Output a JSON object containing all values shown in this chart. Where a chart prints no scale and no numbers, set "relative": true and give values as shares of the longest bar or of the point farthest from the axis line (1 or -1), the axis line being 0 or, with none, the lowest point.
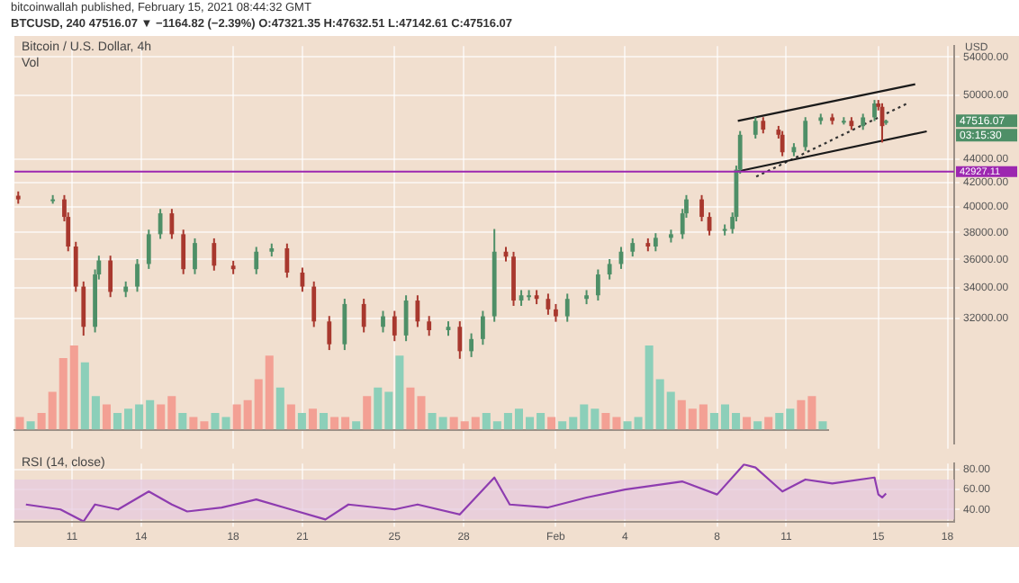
{
  "chart_data": [
    {
      "type": "candlestick",
      "title": "Bitcoin / U.S. Dollar, 4h",
      "ylabel": "USD",
      "log": true,
      "grid": true,
      "tick_labels": "y",
      "annotations": [
        "bitcoinwallah published, February 15, 2021 08:44:32 GMT",
        "BTCUSD, 240 47516.07 ▼ −1164.82 (−2.39%) O:47321.35 H:47632.51 L:47142.61 C:47516.07",
        "47516.07",
        "03:15:30"
      ],
      "xlim": [
        "2021-01-08T12:00",
        "2021-02-18T07:00"
      ],
      "xticks": [
        {
          "value": "2021-01-11",
          "label": null
        },
        {
          "value": "2021-01-14",
          "label": null
        },
        {
          "value": "2021-01-18",
          "label": null
        },
        {
          "value": "2021-01-21",
          "label": null
        },
        {
          "value": "2021-01-25",
          "label": null
        },
        {
          "value": "2021-01-28",
          "label": null
        },
        {
          "value": "2021-02-01",
          "label": null
        },
        {
          "value": "2021-02-04",
          "label": null
        },
        {
          "value": "2021-02-08",
          "label": null
        },
        {
          "value": "2021-02-11",
          "label": null
        },
        {
          "value": "2021-02-15",
          "label": null
        },
        {
          "value": "2021-02-18",
          "label": null
        }
      ],
      "ylim": [
        24900,
        55200
      ],
      "yticks": [
        {
          "value": 54000,
          "label": "54000.00"
        },
        {
          "value": 50000,
          "label": "50000.00"
        },
        {
          "value": 44000,
          "label": "44000.00"
        },
        {
          "value": 42000,
          "label": "42000.00"
        },
        {
          "value": 40000,
          "label": "40000.00"
        },
        {
          "value": 38000,
          "label": "38000.00"
        },
        {
          "value": 36000,
          "label": "36000.00"
        },
        {
          "value": 34000,
          "label": "34000.00"
        },
        {
          "value": 32000,
          "label": "32000.00"
        }
      ],
      "x": [
        "2021-01-08T16:00",
        "2021-01-10T04:00",
        "2021-01-10T16:00",
        "2021-01-10T20:00",
        "2021-01-11T04:00",
        "2021-01-11T12:00",
        "2021-01-12T00:00",
        "2021-01-12T04:00",
        "2021-01-12T16:00",
        "2021-01-13T08:00",
        "2021-01-13T20:00",
        "2021-01-14T08:00",
        "2021-01-14T20:00",
        "2021-01-15T08:00",
        "2021-01-15T20:00",
        "2021-01-16T08:00",
        "2021-01-17T04:00",
        "2021-01-18T00:00",
        "2021-01-19T00:00",
        "2021-01-19T16:00",
        "2021-01-20T08:00",
        "2021-01-21T00:00",
        "2021-01-21T12:00",
        "2021-01-22T04:00",
        "2021-01-22T20:00",
        "2021-01-23T16:00",
        "2021-01-24T12:00",
        "2021-01-25T00:00",
        "2021-01-25T12:00",
        "2021-01-26T00:00",
        "2021-01-26T12:00",
        "2021-01-27T08:00",
        "2021-01-27T20:00",
        "2021-01-28T08:00",
        "2021-01-28T20:00",
        "2021-01-29T08:00",
        "2021-01-29T20:00",
        "2021-01-30T04:00",
        "2021-01-30T12:00",
        "2021-01-30T20:00",
        "2021-01-31T04:00",
        "2021-01-31T16:00",
        "2021-02-01T00:00",
        "2021-02-01T12:00",
        "2021-02-02T08:00",
        "2021-02-02T20:00",
        "2021-02-03T08:00",
        "2021-02-03T20:00",
        "2021-02-04T08:00",
        "2021-02-05T00:00",
        "2021-02-05T08:00",
        "2021-02-06T00:00",
        "2021-02-06T12:00",
        "2021-02-06T16:00",
        "2021-02-07T08:00",
        "2021-02-07T16:00",
        "2021-02-08T08:00",
        "2021-02-08T16:00",
        "2021-02-08T20:00",
        "2021-02-09T00:00",
        "2021-02-09T16:00",
        "2021-02-10T00:00",
        "2021-02-10T16:00",
        "2021-02-10T20:00",
        "2021-02-11T08:00",
        "2021-02-11T20:00",
        "2021-02-12T12:00",
        "2021-02-13T00:00",
        "2021-02-13T12:00",
        "2021-02-13T20:00",
        "2021-02-14T08:00",
        "2021-02-14T20:00",
        "2021-02-15T00:00",
        "2021-02-15T04:00",
        "2021-02-15T08:00"
      ],
      "ohlc": [
        [
          40900,
          41250,
          40250,
          40600
        ],
        [
          40600,
          40950,
          40250,
          40600
        ],
        [
          40600,
          40950,
          38850,
          39200
        ],
        [
          39200,
          39550,
          36590,
          36940
        ],
        [
          36940,
          37290,
          33740,
          34090
        ],
        [
          34090,
          34440,
          30900,
          31450
        ],
        [
          31450,
          35280,
          31100,
          34930
        ],
        [
          34930,
          36270,
          34580,
          35920
        ],
        [
          35920,
          36270,
          33380,
          33730
        ],
        [
          33730,
          34440,
          33380,
          34090
        ],
        [
          34090,
          36020,
          33740,
          35670
        ],
        [
          35670,
          38210,
          35320,
          37860
        ],
        [
          37860,
          39830,
          37510,
          39480
        ],
        [
          39480,
          39830,
          37510,
          37860
        ],
        [
          37860,
          38210,
          34950,
          35300
        ],
        [
          35300,
          37550,
          34950,
          37200
        ],
        [
          37200,
          37550,
          35200,
          35550
        ],
        [
          35550,
          35900,
          34950,
          35300
        ],
        [
          35300,
          36910,
          34950,
          36560
        ],
        [
          36560,
          37160,
          36210,
          36810
        ],
        [
          36810,
          37160,
          34710,
          35060
        ],
        [
          35060,
          35410,
          33740,
          34090
        ],
        [
          34090,
          34440,
          31440,
          31790
        ],
        [
          31790,
          32140,
          30020,
          30370
        ],
        [
          30370,
          33270,
          30020,
          32920
        ],
        [
          32920,
          33270,
          31100,
          31450
        ],
        [
          31450,
          32470,
          31100,
          32120
        ],
        [
          32120,
          32470,
          30560,
          30910
        ],
        [
          30910,
          33500,
          30560,
          33150
        ],
        [
          33150,
          33500,
          31440,
          31790
        ],
        [
          31790,
          32140,
          30890,
          31240
        ],
        [
          31240,
          31800,
          30890,
          31450
        ],
        [
          31450,
          31800,
          29500,
          29950
        ],
        [
          29950,
          31040,
          29600,
          30690
        ],
        [
          30690,
          32470,
          30340,
          32120
        ],
        [
          32120,
          38260,
          31770,
          36560
        ],
        [
          36560,
          36910,
          35850,
          36200
        ],
        [
          36200,
          36550,
          32800,
          33150
        ],
        [
          33150,
          33850,
          32800,
          33500
        ],
        [
          33500,
          33850,
          33150,
          33500
        ],
        [
          33500,
          33850,
          32910,
          33260
        ],
        [
          33260,
          33610,
          32220,
          32570
        ],
        [
          32570,
          32920,
          31770,
          32120
        ],
        [
          32120,
          33610,
          31770,
          33260
        ],
        [
          33260,
          33850,
          32910,
          33500
        ],
        [
          33500,
          35280,
          33150,
          34930
        ],
        [
          34930,
          36020,
          34580,
          35670
        ],
        [
          35670,
          36910,
          35320,
          36560
        ],
        [
          36560,
          37550,
          36210,
          37200
        ],
        [
          37200,
          37550,
          36590,
          36940
        ],
        [
          36940,
          37940,
          36590,
          37590
        ],
        [
          37590,
          38210,
          37240,
          37860
        ],
        [
          37860,
          39830,
          37510,
          39480
        ],
        [
          39480,
          40950,
          39130,
          40600
        ],
        [
          40600,
          40950,
          38850,
          39200
        ],
        [
          39200,
          39550,
          37770,
          38120
        ],
        [
          38120,
          38610,
          37770,
          38260
        ],
        [
          38260,
          39550,
          37910,
          39200
        ],
        [
          39200,
          43440,
          38850,
          43090
        ],
        [
          43090,
          46560,
          42740,
          46210
        ],
        [
          46210,
          47870,
          45860,
          47520
        ],
        [
          47520,
          47870,
          46340,
          46690
        ],
        [
          46690,
          47040,
          45860,
          46210
        ],
        [
          46210,
          46560,
          44270,
          44620
        ],
        [
          44620,
          45440,
          44270,
          45090
        ],
        [
          45090,
          47870,
          44740,
          47520
        ],
        [
          47520,
          48200,
          47170,
          47850
        ],
        [
          47850,
          48200,
          47170,
          47520
        ],
        [
          47520,
          47870,
          47170,
          47520
        ],
        [
          47520,
          47870,
          46670,
          47020
        ],
        [
          47020,
          48200,
          46670,
          47850
        ],
        [
          47850,
          49550,
          47500,
          49200
        ],
        [
          49200,
          49550,
          48520,
          48870
        ],
        [
          48870,
          49220,
          45500,
          47020
        ],
        [
          47321.35,
          47632.51,
          47142.61,
          47516.07
        ]
      ],
      "colors": [
        "#a8382e",
        "#4e8f67",
        "#a8382e",
        "#a8382e",
        "#a8382e",
        "#a8382e",
        "#4e8f67",
        "#4e8f67",
        "#a8382e",
        "#4e8f67",
        "#4e8f67",
        "#4e8f67",
        "#4e8f67",
        "#a8382e",
        "#a8382e",
        "#4e8f67",
        "#a8382e",
        "#a8382e",
        "#4e8f67",
        "#4e8f67",
        "#a8382e",
        "#a8382e",
        "#a8382e",
        "#a8382e",
        "#4e8f67",
        "#a8382e",
        "#4e8f67",
        "#a8382e",
        "#4e8f67",
        "#a8382e",
        "#a8382e",
        "#4e8f67",
        "#a8382e",
        "#4e8f67",
        "#4e8f67",
        "#4e8f67",
        "#a8382e",
        "#a8382e",
        "#4e8f67",
        "#4e8f67",
        "#a8382e",
        "#a8382e",
        "#a8382e",
        "#4e8f67",
        "#4e8f67",
        "#4e8f67",
        "#4e8f67",
        "#4e8f67",
        "#4e8f67",
        "#a8382e",
        "#4e8f67",
        "#4e8f67",
        "#4e8f67",
        "#4e8f67",
        "#a8382e",
        "#a8382e",
        "#4e8f67",
        "#4e8f67",
        "#4e8f67",
        "#4e8f67",
        "#4e8f67",
        "#a8382e",
        "#a8382e",
        "#a8382e",
        "#4e8f67",
        "#4e8f67",
        "#4e8f67",
        "#a8382e",
        "#4e8f67",
        "#a8382e",
        "#4e8f67",
        "#4e8f67",
        "#a8382e",
        "#a8382e",
        "#4e8f67"
      ],
      "series": [
        {
          "type": "line",
          "color": "#1a1a1a",
          "line_style": "solid",
          "x": [
            "2021-02-08T21:36",
            "2021-02-16T14:24"
          ],
          "values": [
            47520,
            51140
          ]
        },
        {
          "type": "line",
          "color": "#1a1a1a",
          "line_style": "solid",
          "x": [
            "2021-02-08T21:36",
            "2021-02-17T02:24"
          ],
          "values": [
            42940,
            46530
          ]
        },
        {
          "type": "line",
          "color": "#333333",
          "line_style": "dotted",
          "x": [
            "2021-02-09T16:48",
            "2021-02-16T06:00"
          ],
          "values": [
            42490,
            49200
          ]
        }
      ],
      "ref_lines": [
        {
          "axis": "y",
          "value": 42927.11,
          "label": "42927.11",
          "color": "#9c27b0"
        }
      ]
    },
    {
      "type": "bar",
      "title": "Vol",
      "relative": true,
      "categories": [
        null,
        null,
        null,
        null,
        null,
        null,
        null,
        null,
        null,
        null,
        null,
        null,
        null,
        null,
        null,
        null,
        null,
        null,
        null,
        null,
        null,
        null,
        null,
        null,
        null,
        null,
        null,
        null,
        null,
        null,
        null,
        null,
        null,
        null,
        null,
        null,
        null,
        null,
        null,
        null,
        null,
        null,
        null,
        null,
        null,
        null,
        null,
        null,
        null,
        null,
        null,
        null,
        null,
        null,
        null,
        null,
        null,
        null,
        null,
        null,
        null,
        null,
        null,
        null,
        null,
        null,
        null,
        null,
        null,
        null,
        null,
        null,
        null,
        null,
        null
      ],
      "values": [
        0.15,
        0.1,
        0.2,
        0.45,
        0.85,
        1.0,
        0.8,
        0.4,
        0.3,
        0.2,
        0.25,
        0.3,
        0.35,
        0.3,
        0.4,
        0.2,
        0.15,
        0.1,
        0.2,
        0.15,
        0.3,
        0.35,
        0.6,
        0.88,
        0.5,
        0.3,
        0.2,
        0.25,
        0.2,
        0.15,
        0.15,
        0.1,
        0.4,
        0.5,
        0.45,
        0.88,
        0.5,
        0.4,
        0.2,
        0.15,
        0.15,
        0.1,
        0.15,
        0.2,
        0.1,
        0.2,
        0.25,
        0.15,
        0.2,
        0.15,
        0.1,
        0.15,
        0.3,
        0.25,
        0.2,
        0.15,
        0.1,
        0.15,
        1.0,
        0.6,
        0.45,
        0.35,
        0.25,
        0.3,
        0.2,
        0.3,
        0.2,
        0.15,
        0.1,
        0.15,
        0.2,
        0.25,
        0.35,
        0.4,
        0.1
      ],
      "colors": [
        "#f3a094",
        "#8ccfb9",
        "#f3a094",
        "#f3a094",
        "#f3a094",
        "#f3a094",
        "#8ccfb9",
        "#8ccfb9",
        "#f3a094",
        "#8ccfb9",
        "#8ccfb9",
        "#8ccfb9",
        "#8ccfb9",
        "#f3a094",
        "#f3a094",
        "#8ccfb9",
        "#f3a094",
        "#f3a094",
        "#8ccfb9",
        "#8ccfb9",
        "#f3a094",
        "#f3a094",
        "#f3a094",
        "#f3a094",
        "#8ccfb9",
        "#f3a094",
        "#8ccfb9",
        "#f3a094",
        "#8ccfb9",
        "#f3a094",
        "#f3a094",
        "#8ccfb9",
        "#f3a094",
        "#8ccfb9",
        "#8ccfb9",
        "#8ccfb9",
        "#f3a094",
        "#f3a094",
        "#8ccfb9",
        "#8ccfb9",
        "#f3a094",
        "#f3a094",
        "#f3a094",
        "#8ccfb9",
        "#8ccfb9",
        "#8ccfb9",
        "#8ccfb9",
        "#8ccfb9",
        "#8ccfb9",
        "#f3a094",
        "#8ccfb9",
        "#8ccfb9",
        "#8ccfb9",
        "#8ccfb9",
        "#f3a094",
        "#f3a094",
        "#8ccfb9",
        "#8ccfb9",
        "#8ccfb9",
        "#8ccfb9",
        "#8ccfb9",
        "#f3a094",
        "#f3a094",
        "#f3a094",
        "#8ccfb9",
        "#8ccfb9",
        "#8ccfb9",
        "#f3a094",
        "#8ccfb9",
        "#f3a094",
        "#8ccfb9",
        "#8ccfb9",
        "#f3a094",
        "#f3a094",
        "#8ccfb9"
      ]
    },
    {
      "type": "line",
      "title": "RSI (14, close)",
      "grid": true,
      "xlim": [
        "2021-01-08T12:00",
        "2021-02-18T07:00"
      ],
      "xticks": [
        {
          "value": "2021-01-11",
          "label": "11"
        },
        {
          "value": "2021-01-14",
          "label": "14"
        },
        {
          "value": "2021-01-18",
          "label": "18"
        },
        {
          "value": "2021-01-21",
          "label": "21"
        },
        {
          "value": "2021-01-25",
          "label": "25"
        },
        {
          "value": "2021-01-28",
          "label": "28"
        },
        {
          "value": "2021-02-01",
          "label": "Feb"
        },
        {
          "value": "2021-02-04",
          "label": "4"
        },
        {
          "value": "2021-02-08",
          "label": "8"
        },
        {
          "value": "2021-02-11",
          "label": "11"
        },
        {
          "value": "2021-02-15",
          "label": "15"
        },
        {
          "value": "2021-02-18",
          "label": "18"
        }
      ],
      "ylim": [
        28,
        86
      ],
      "yticks": [
        {
          "value": 80,
          "label": "80.00"
        },
        {
          "value": 60,
          "label": "60.00"
        },
        {
          "value": 40,
          "label": "40.00"
        }
      ],
      "bands": [
        {
          "axis": "y",
          "from": 30,
          "to": 70,
          "color": "#e6c8de"
        }
      ],
      "series": [
        {
          "color": "#8e3cb0",
          "x": [
            "2021-01-09",
            "2021-01-10T12:00",
            "2021-01-11T12:00",
            "2021-01-12",
            "2021-01-13",
            "2021-01-14T08:00",
            "2021-01-15T08:00",
            "2021-01-16",
            "2021-01-17T12:00",
            "2021-01-19",
            "2021-01-20T12:00",
            "2021-01-22",
            "2021-01-23",
            "2021-01-25",
            "2021-01-26",
            "2021-01-27T20:00",
            "2021-01-29T08:00",
            "2021-01-30",
            "2021-01-31T16:00",
            "2021-02-02T08:00",
            "2021-02-04",
            "2021-02-06T12:00",
            "2021-02-08",
            "2021-02-09T04:00",
            "2021-02-09T16:00",
            "2021-02-10T20:00",
            "2021-02-11T20:00",
            "2021-02-13",
            "2021-02-14T20:00",
            "2021-02-15",
            "2021-02-15T04:00",
            "2021-02-15T08:00"
          ],
          "values": [
            45,
            40,
            28,
            45,
            40,
            58,
            45,
            38,
            42,
            50,
            40,
            30,
            45,
            40,
            45,
            35,
            72,
            45,
            42,
            52,
            60,
            68,
            55,
            85,
            82,
            58,
            70,
            66,
            72,
            55,
            52,
            56
          ]
        }
      ]
    }
  ]
}
